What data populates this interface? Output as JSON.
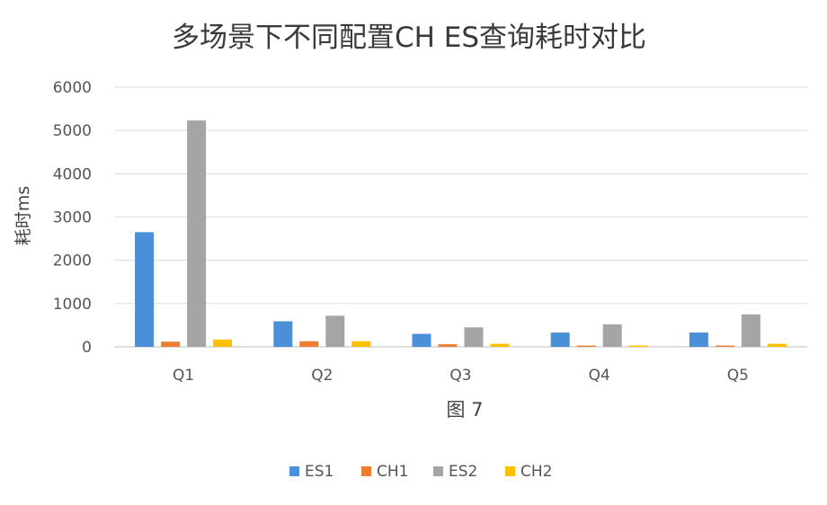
{
  "chart_data": {
    "type": "bar",
    "title": "多场景下不同配置CH ES查询耗时对比",
    "xlabel": "图 7",
    "ylabel": "耗时ms",
    "categories": [
      "Q1",
      "Q2",
      "Q3",
      "Q4",
      "Q5"
    ],
    "ylim": [
      0,
      6000
    ],
    "yticks": [
      0,
      1000,
      2000,
      3000,
      4000,
      5000,
      6000
    ],
    "ytick_labels": [
      "0",
      "1000",
      "2000",
      "3000",
      "4000",
      "5000",
      "6000"
    ],
    "grid": true,
    "legend_position": "bottom",
    "series": [
      {
        "name": "ES1",
        "color": "#4a90d9",
        "values": [
          2650,
          590,
          300,
          330,
          330
        ]
      },
      {
        "name": "CH1",
        "color": "#ed7d31",
        "values": [
          120,
          130,
          60,
          30,
          30
        ]
      },
      {
        "name": "ES2",
        "color": "#a5a5a5",
        "values": [
          5230,
          720,
          450,
          520,
          750
        ]
      },
      {
        "name": "CH2",
        "color": "#ffc000",
        "values": [
          170,
          130,
          70,
          30,
          70
        ]
      }
    ]
  }
}
